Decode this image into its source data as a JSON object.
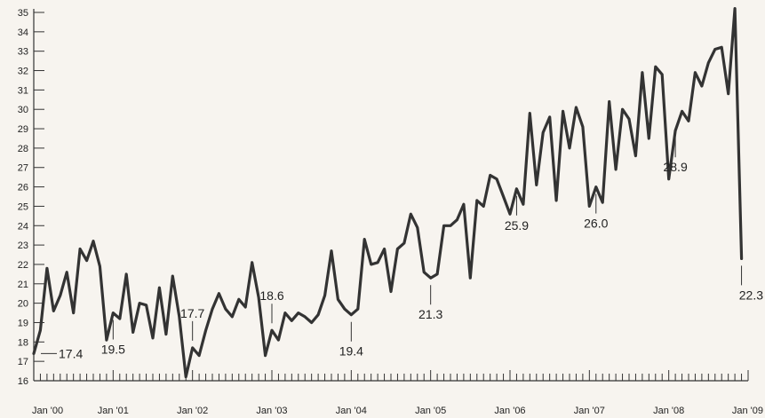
{
  "chart_data": {
    "type": "line",
    "title": "",
    "xlabel": "",
    "ylabel": "",
    "ylim": [
      16,
      35
    ],
    "xlim": [
      "2000-01",
      "2009-01"
    ],
    "grid": false,
    "line_color": "#333333",
    "y_ticks": [
      16,
      17,
      18,
      19,
      20,
      21,
      22,
      23,
      24,
      25,
      26,
      27,
      28,
      29,
      30,
      31,
      32,
      33,
      34,
      35
    ],
    "x_ticks": [
      {
        "label": "Jan '00",
        "date": "2000-01"
      },
      {
        "label": "Jan '01",
        "date": "2001-01"
      },
      {
        "label": "Jan '02",
        "date": "2002-01"
      },
      {
        "label": "Jan '03",
        "date": "2003-01"
      },
      {
        "label": "Jan '04",
        "date": "2004-01"
      },
      {
        "label": "Jan '05",
        "date": "2005-01"
      },
      {
        "label": "Jan '06",
        "date": "2006-01"
      },
      {
        "label": "Jan '07",
        "date": "2007-01"
      },
      {
        "label": "Jan '08",
        "date": "2008-01"
      },
      {
        "label": "Jan '09",
        "date": "2009-01"
      }
    ],
    "series": [
      {
        "x": [
          "2000-01",
          "2000-02",
          "2000-03",
          "2000-04",
          "2000-05",
          "2000-06",
          "2000-07",
          "2000-08",
          "2000-09",
          "2000-10",
          "2000-11",
          "2000-12",
          "2001-01",
          "2001-02",
          "2001-03",
          "2001-04",
          "2001-05",
          "2001-06",
          "2001-07",
          "2001-08",
          "2001-09",
          "2001-10",
          "2001-11",
          "2001-12",
          "2002-01",
          "2002-02",
          "2002-03",
          "2002-04",
          "2002-05",
          "2002-06",
          "2002-07",
          "2002-08",
          "2002-09",
          "2002-10",
          "2002-11",
          "2002-12",
          "2003-01",
          "2003-02",
          "2003-03",
          "2003-04",
          "2003-05",
          "2003-06",
          "2003-07",
          "2003-08",
          "2003-09",
          "2003-10",
          "2003-11",
          "2003-12",
          "2004-01",
          "2004-02",
          "2004-03",
          "2004-04",
          "2004-05",
          "2004-06",
          "2004-07",
          "2004-08",
          "2004-09",
          "2004-10",
          "2004-11",
          "2004-12",
          "2005-01",
          "2005-02",
          "2005-03",
          "2005-04",
          "2005-05",
          "2005-06",
          "2005-07",
          "2005-08",
          "2005-09",
          "2005-10",
          "2005-11",
          "2005-12",
          "2006-01",
          "2006-02",
          "2006-03",
          "2006-04",
          "2006-05",
          "2006-06",
          "2006-07",
          "2006-08",
          "2006-09",
          "2006-10",
          "2006-11",
          "2006-12",
          "2007-01",
          "2007-02",
          "2007-03",
          "2007-04",
          "2007-05",
          "2007-06",
          "2007-07",
          "2007-08",
          "2007-09",
          "2007-10",
          "2007-11",
          "2007-12",
          "2008-01",
          "2008-02",
          "2008-03",
          "2008-04",
          "2008-05",
          "2008-06",
          "2008-07",
          "2008-08",
          "2008-09",
          "2008-10",
          "2008-11",
          "2008-12"
        ],
        "values": [
          17.4,
          18.6,
          21.8,
          19.6,
          20.4,
          21.6,
          19.5,
          22.8,
          22.2,
          23.2,
          21.9,
          18.1,
          19.5,
          19.2,
          21.5,
          18.5,
          20.0,
          19.9,
          18.2,
          20.8,
          18.4,
          21.4,
          19.3,
          16.2,
          17.7,
          17.3,
          18.6,
          19.7,
          20.5,
          19.7,
          19.3,
          20.2,
          19.8,
          22.1,
          20.3,
          17.3,
          18.6,
          18.1,
          19.5,
          19.1,
          19.5,
          19.3,
          19.0,
          19.4,
          20.4,
          22.7,
          20.2,
          19.7,
          19.4,
          19.7,
          23.3,
          22.0,
          22.1,
          22.8,
          20.6,
          22.8,
          23.1,
          24.6,
          23.9,
          21.6,
          21.3,
          21.5,
          24.0,
          24.0,
          24.3,
          25.1,
          21.3,
          25.3,
          25.0,
          26.6,
          26.4,
          25.5,
          24.6,
          25.9,
          25.1,
          29.8,
          26.1,
          28.8,
          29.6,
          25.3,
          29.9,
          28.0,
          30.1,
          29.1,
          25.0,
          26.0,
          25.2,
          30.4,
          26.9,
          30.0,
          29.5,
          27.6,
          31.9,
          28.5,
          32.2,
          31.8,
          26.4,
          28.9,
          29.9,
          29.4,
          31.9,
          31.2,
          32.4,
          33.1,
          33.2,
          30.8,
          35.2,
          22.3
        ]
      }
    ],
    "annotations": [
      {
        "label": "17.4",
        "date": "2000-01",
        "value": 17.4,
        "side": "right"
      },
      {
        "label": "19.5",
        "date": "2001-01",
        "value": 19.5,
        "side": "below"
      },
      {
        "label": "17.7",
        "date": "2002-01",
        "value": 17.7,
        "side": "above"
      },
      {
        "label": "18.6",
        "date": "2003-01",
        "value": 18.6,
        "side": "above"
      },
      {
        "label": "19.4",
        "date": "2004-01",
        "value": 19.4,
        "side": "below"
      },
      {
        "label": "21.3",
        "date": "2005-01",
        "value": 21.3,
        "side": "below"
      },
      {
        "label": "25.9",
        "date": "2006-02",
        "value": 25.9,
        "side": "below"
      },
      {
        "label": "26.0",
        "date": "2007-02",
        "value": 26.0,
        "side": "below"
      },
      {
        "label": "28.9",
        "date": "2008-02",
        "value": 28.9,
        "side": "below"
      },
      {
        "label": "22.3",
        "date": "2008-12",
        "value": 22.3,
        "side": "below"
      }
    ]
  }
}
